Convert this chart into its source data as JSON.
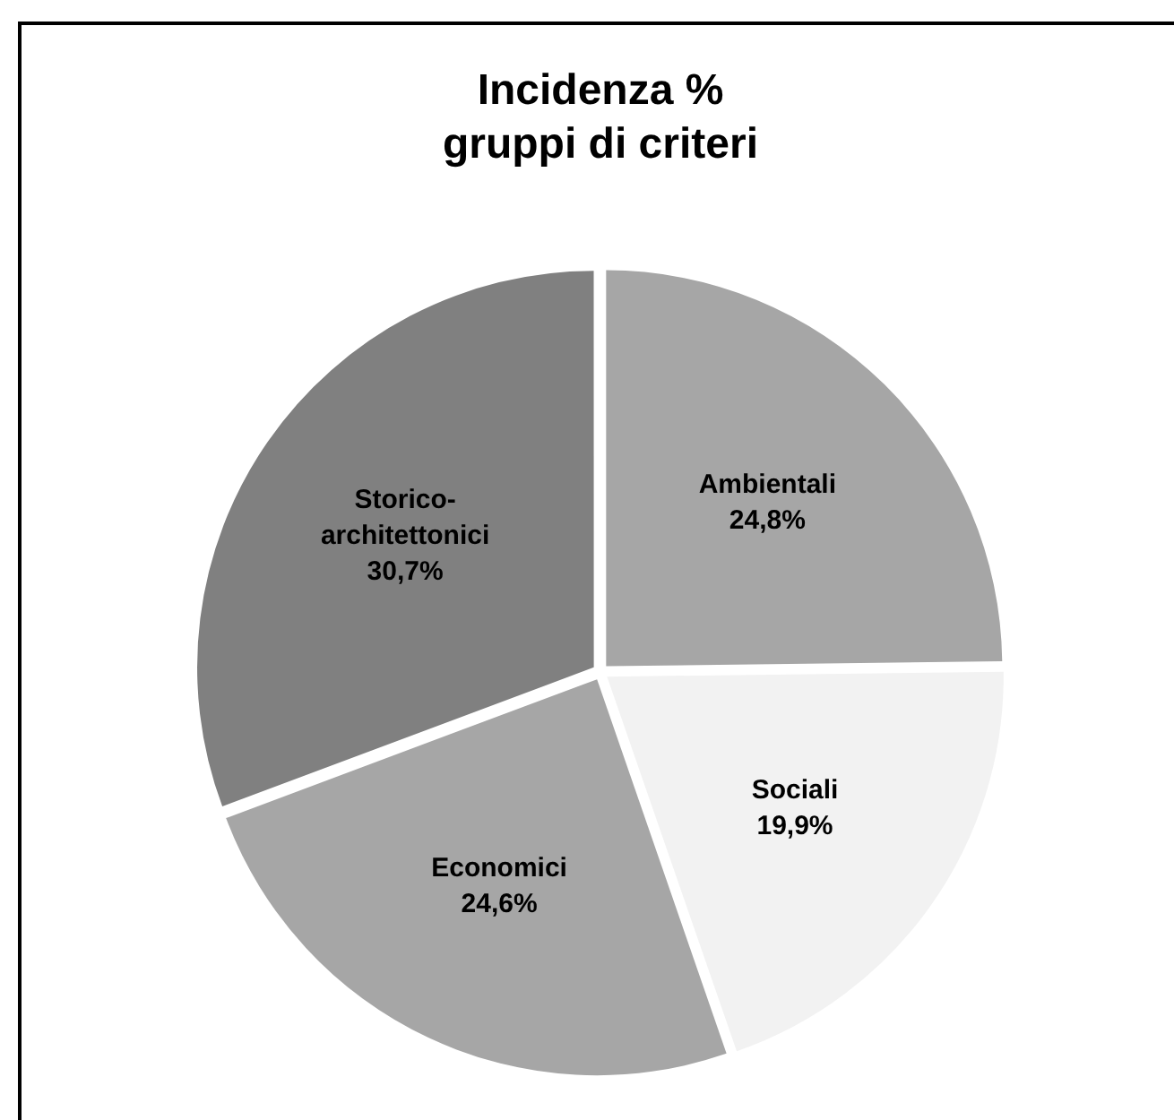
{
  "chart_data": {
    "type": "pie",
    "title": "Incidenza %\ngruppi di criteri",
    "categories": [
      "Ambientali",
      "Sociali",
      "Economici",
      "Storico-architettonici"
    ],
    "values": [
      24.8,
      19.9,
      24.6,
      30.7
    ],
    "colors": [
      "#a6a6a6",
      "#f2f2f2",
      "#a6a6a6",
      "#808080"
    ],
    "value_labels": [
      "24,8%",
      "19,9%",
      "24,6%",
      "30,7%"
    ],
    "legend": false
  }
}
